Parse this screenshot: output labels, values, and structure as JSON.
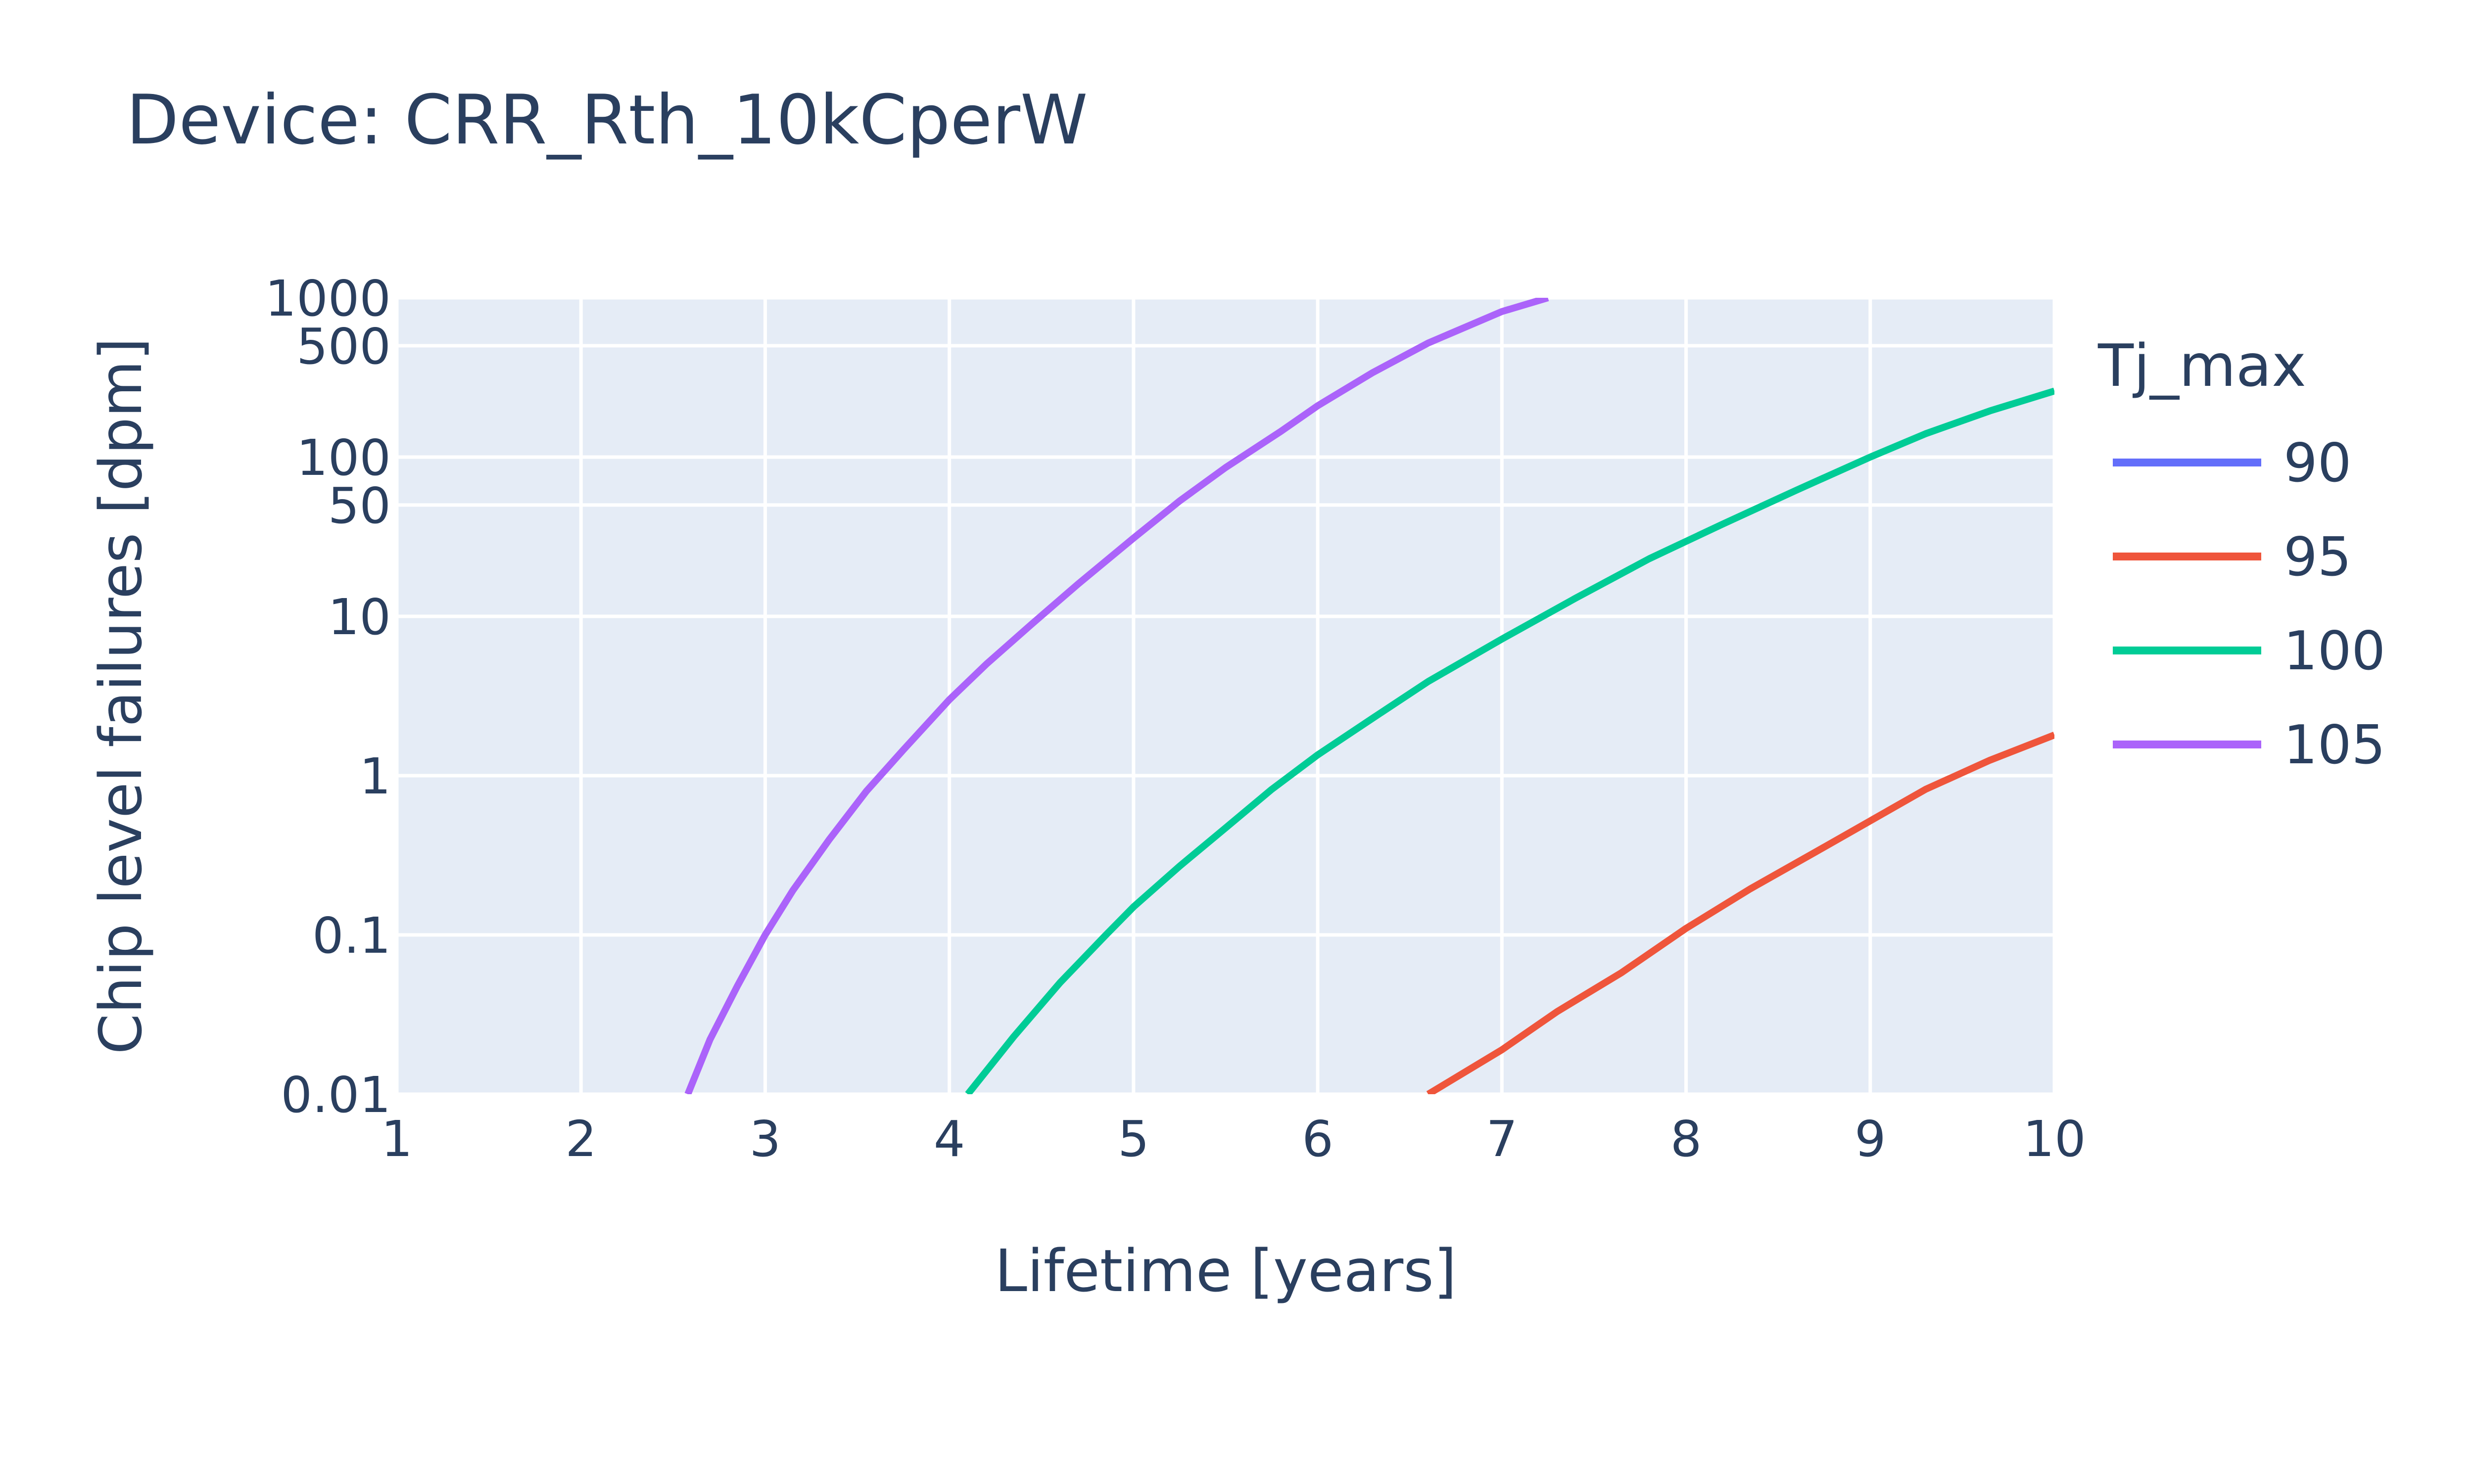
{
  "chart_data": {
    "type": "line",
    "title": "Device: CRR_Rth_10kCperW",
    "xlabel": "Lifetime [years]",
    "ylabel": "Chip level failures [dpm]",
    "xlim": [
      1,
      10
    ],
    "ylim": [
      0.01,
      1000
    ],
    "yscale": "log",
    "xticks": [
      "1",
      "2",
      "3",
      "4",
      "5",
      "6",
      "7",
      "8",
      "9",
      "10"
    ],
    "yticks": [
      {
        "value": 0.01,
        "label": "0.01"
      },
      {
        "value": 0.1,
        "label": "0.1"
      },
      {
        "value": 1,
        "label": "1"
      },
      {
        "value": 10,
        "label": "10"
      },
      {
        "value": 50,
        "label": "50"
      },
      {
        "value": 100,
        "label": "100"
      },
      {
        "value": 500,
        "label": "500"
      },
      {
        "value": 1000,
        "label": "1000"
      }
    ],
    "grid": true,
    "legend": {
      "title": "Tj_max",
      "placement": "right"
    },
    "background": "#e5ecf6",
    "series": [
      {
        "name": "90",
        "color": "#636efa",
        "x": [],
        "y": []
      },
      {
        "name": "95",
        "color": "#ef553b",
        "x": [
          6.6,
          7.0,
          7.3,
          7.65,
          8.0,
          8.35,
          8.7,
          9.0,
          9.3,
          9.65,
          10.0
        ],
        "y": [
          0.01,
          0.019,
          0.033,
          0.058,
          0.11,
          0.195,
          0.33,
          0.52,
          0.82,
          1.25,
          1.8
        ]
      },
      {
        "name": "100",
        "color": "#00cc96",
        "x": [
          4.1,
          4.35,
          4.6,
          4.85,
          5.0,
          5.25,
          5.5,
          5.75,
          6.0,
          6.3,
          6.6,
          7.0,
          7.4,
          7.8,
          8.2,
          8.6,
          9.0,
          9.3,
          9.65,
          10.0
        ],
        "y": [
          0.01,
          0.023,
          0.05,
          0.1,
          0.15,
          0.27,
          0.47,
          0.82,
          1.35,
          2.3,
          3.9,
          7.2,
          13,
          23,
          38,
          62,
          100,
          140,
          195,
          260
        ]
      },
      {
        "name": "105",
        "color": "#ab63fa",
        "x": [
          2.58,
          2.7,
          2.85,
          3.0,
          3.15,
          3.35,
          3.55,
          3.75,
          4.0,
          4.2,
          4.45,
          4.7,
          5.0,
          5.25,
          5.5,
          5.8,
          6.0,
          6.3,
          6.6,
          7.0,
          7.25
        ],
        "y": [
          0.01,
          0.022,
          0.048,
          0.1,
          0.19,
          0.4,
          0.8,
          1.45,
          3,
          5,
          9,
          16,
          31,
          53,
          86,
          145,
          210,
          340,
          520,
          820,
          1000
        ]
      }
    ]
  }
}
